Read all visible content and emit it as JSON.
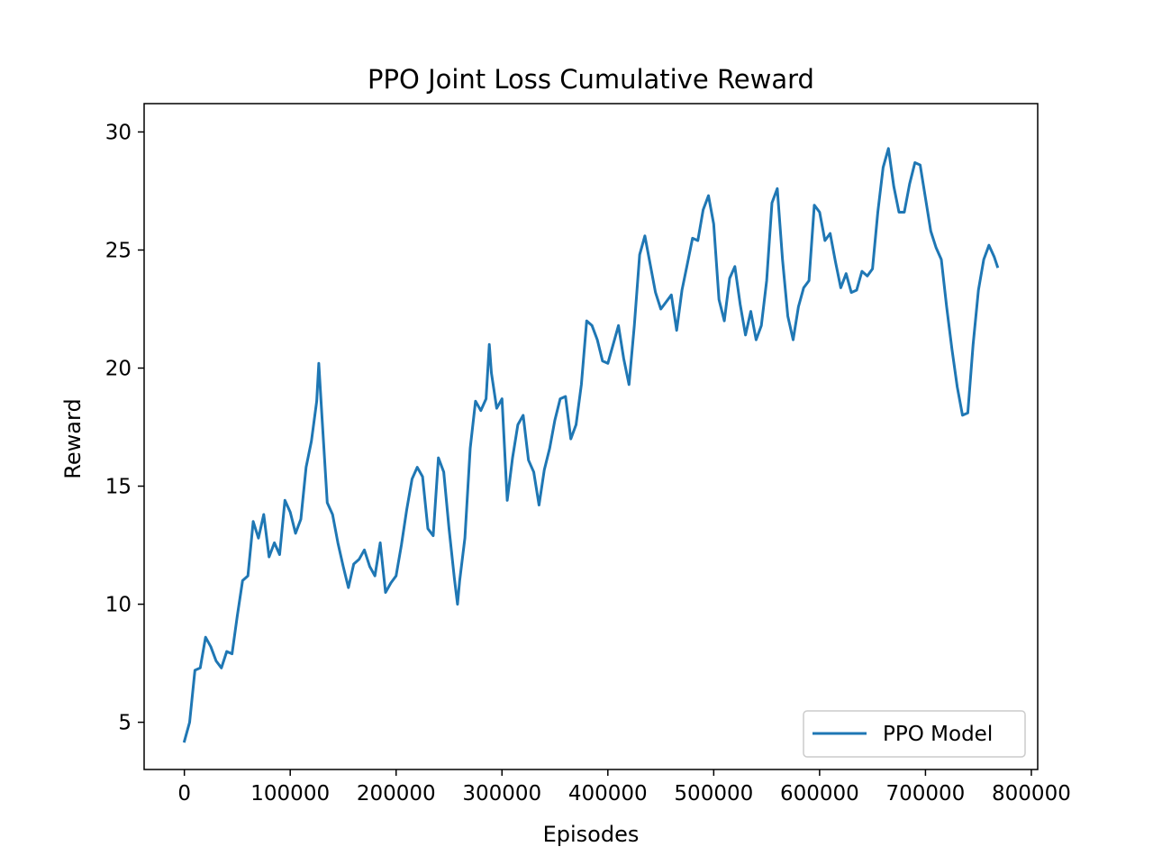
{
  "chart_data": {
    "type": "line",
    "title": "PPO Joint Loss Cumulative Reward",
    "xlabel": "Episodes",
    "ylabel": "Reward",
    "xlim": [
      -38000,
      806000
    ],
    "ylim": [
      3.0,
      31.2
    ],
    "x_ticks": [
      0,
      100000,
      200000,
      300000,
      400000,
      500000,
      600000,
      700000,
      800000
    ],
    "y_ticks": [
      5,
      10,
      15,
      20,
      25,
      30
    ],
    "grid": false,
    "legend": {
      "position": "lower-right",
      "entries": [
        "PPO Model"
      ]
    },
    "series": [
      {
        "name": "PPO Model",
        "color": "#1f77b4",
        "x": [
          0,
          5000,
          10000,
          15000,
          20000,
          25000,
          30000,
          35000,
          40000,
          45000,
          50000,
          55000,
          60000,
          65000,
          70000,
          75000,
          80000,
          85000,
          90000,
          95000,
          100000,
          105000,
          110000,
          115000,
          120000,
          125000,
          127000,
          130000,
          135000,
          140000,
          145000,
          150000,
          155000,
          160000,
          165000,
          170000,
          175000,
          180000,
          185000,
          190000,
          195000,
          200000,
          205000,
          210000,
          215000,
          220000,
          225000,
          230000,
          235000,
          240000,
          245000,
          250000,
          255000,
          258000,
          260000,
          265000,
          270000,
          275000,
          280000,
          285000,
          288000,
          290000,
          295000,
          300000,
          305000,
          310000,
          315000,
          320000,
          325000,
          330000,
          335000,
          340000,
          345000,
          350000,
          355000,
          360000,
          365000,
          370000,
          375000,
          380000,
          385000,
          390000,
          395000,
          400000,
          405000,
          410000,
          415000,
          420000,
          425000,
          430000,
          435000,
          440000,
          445000,
          450000,
          455000,
          460000,
          465000,
          470000,
          475000,
          480000,
          485000,
          490000,
          495000,
          500000,
          505000,
          510000,
          515000,
          520000,
          525000,
          530000,
          535000,
          540000,
          545000,
          550000,
          555000,
          560000,
          565000,
          570000,
          575000,
          580000,
          585000,
          590000,
          595000,
          600000,
          605000,
          610000,
          615000,
          620000,
          625000,
          630000,
          635000,
          640000,
          645000,
          650000,
          655000,
          660000,
          665000,
          670000,
          675000,
          680000,
          685000,
          690000,
          695000,
          700000,
          705000,
          710000,
          715000,
          720000,
          725000,
          730000,
          735000,
          740000,
          745000,
          750000,
          755000,
          760000,
          765000,
          768000
        ],
        "y": [
          4.2,
          5.0,
          7.2,
          7.3,
          8.6,
          8.2,
          7.6,
          7.3,
          8.0,
          7.9,
          9.5,
          11.0,
          11.2,
          13.5,
          12.8,
          13.8,
          12.0,
          12.6,
          12.1,
          14.4,
          13.9,
          13.0,
          13.6,
          15.8,
          16.9,
          18.6,
          20.2,
          17.9,
          14.3,
          13.8,
          12.6,
          11.6,
          10.7,
          11.7,
          11.9,
          12.3,
          11.6,
          11.2,
          12.6,
          10.5,
          10.9,
          11.2,
          12.5,
          14.0,
          15.3,
          15.8,
          15.4,
          13.2,
          12.9,
          16.2,
          15.6,
          13.2,
          11.1,
          10.0,
          11.0,
          12.8,
          16.6,
          18.6,
          18.2,
          18.7,
          21.0,
          19.8,
          18.3,
          18.7,
          14.4,
          16.2,
          17.6,
          18.0,
          16.1,
          15.6,
          14.2,
          15.7,
          16.6,
          17.8,
          18.7,
          18.8,
          17.0,
          17.6,
          19.3,
          22.0,
          21.8,
          21.2,
          20.3,
          20.2,
          21.0,
          21.8,
          20.4,
          19.3,
          21.8,
          24.8,
          25.6,
          24.4,
          23.2,
          22.5,
          22.8,
          23.1,
          21.6,
          23.3,
          24.4,
          25.5,
          25.4,
          26.7,
          27.3,
          26.1,
          22.9,
          22.0,
          23.8,
          24.3,
          22.7,
          21.4,
          22.4,
          21.2,
          21.8,
          23.7,
          27.0,
          27.6,
          24.6,
          22.2,
          21.2,
          22.6,
          23.4,
          23.7,
          26.9,
          26.6,
          25.4,
          25.7,
          24.5,
          23.4,
          24.0,
          23.2,
          23.3,
          24.1,
          23.9,
          24.2,
          26.6,
          28.5,
          29.3,
          27.7,
          26.6,
          26.6,
          27.8,
          28.7,
          28.6,
          27.2,
          25.8,
          25.1,
          24.6,
          22.6,
          20.8,
          19.2,
          18.0,
          18.1,
          21.0,
          23.3,
          24.6,
          25.2,
          24.7,
          24.3
        ]
      }
    ]
  }
}
